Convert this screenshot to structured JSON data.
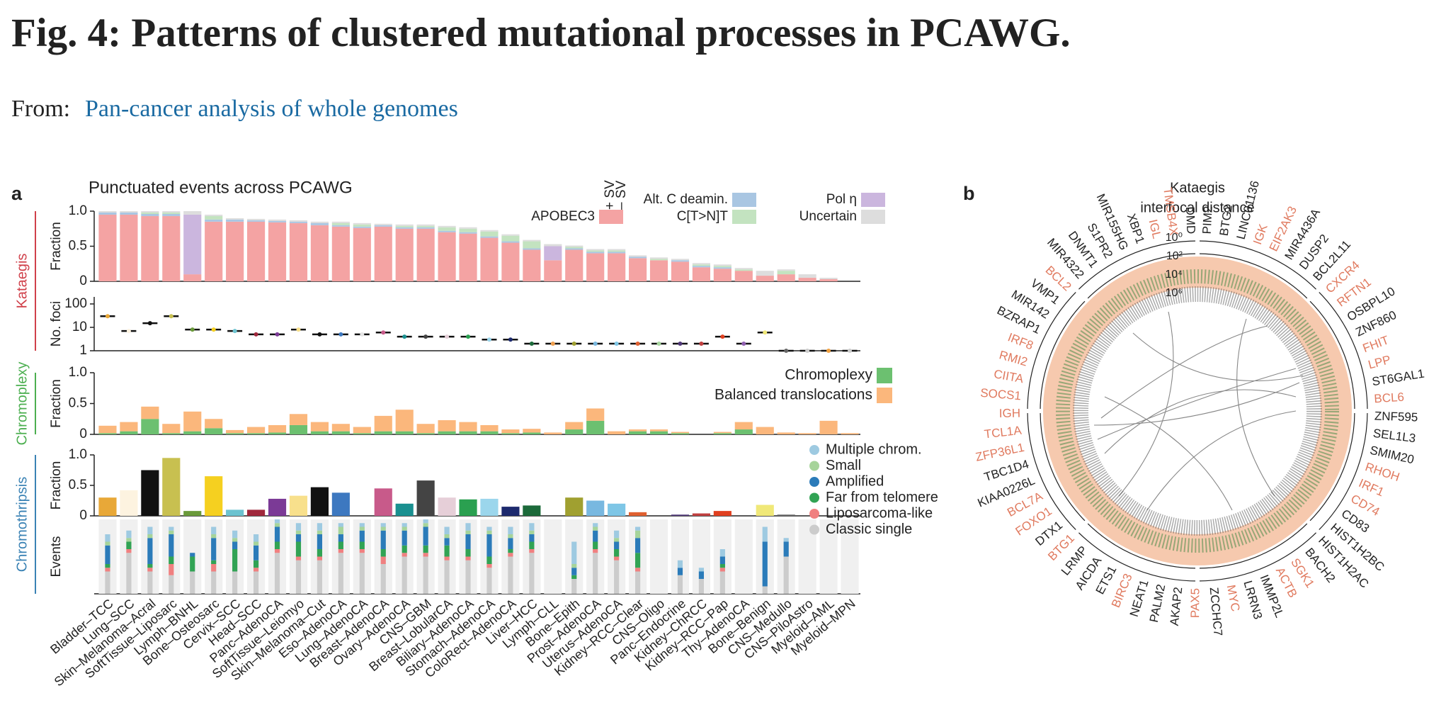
{
  "header": {
    "title": "Fig. 4: Patterns of clustered mutational processes in PCAWG.",
    "from": "From:",
    "source": "Pan-cancer analysis of whole genomes"
  },
  "panel_a": {
    "letter": "a",
    "groups": [
      {
        "label": "Kataegis",
        "color": "#d0404a"
      },
      {
        "label": "Chromoplexy",
        "color": "#4caf50"
      },
      {
        "label": "Chromothripsis",
        "color": "#3a82b4"
      }
    ]
  },
  "chart_data": [
    {
      "type": "stacked-bar",
      "title": "Punctuated events across PCAWG",
      "ylabel": "Fraction",
      "sv_labels": [
        "+ SV",
        "– SV"
      ],
      "ylim": [
        0,
        1
      ],
      "yticks": [
        0,
        0.5,
        {
          "value": 1,
          "label": "1.0"
        }
      ],
      "series": [
        {
          "name": "APOBEC3",
          "color": "#f4a3a3",
          "values": [
            0.95,
            0.95,
            0.93,
            0.93,
            0.1,
            0.85,
            0.85,
            0.85,
            0.84,
            0.83,
            0.8,
            0.78,
            0.76,
            0.78,
            0.75,
            0.75,
            0.7,
            0.68,
            0.62,
            0.55,
            0.45,
            0.3,
            0.45,
            0.4,
            0.4,
            0.33,
            0.3,
            0.28,
            0.2,
            0.18,
            0.15,
            0.08,
            0.1,
            0.05,
            0.03,
            0
          ]
        },
        {
          "name": "Alt. C deamin.",
          "color": "#a9c6e2",
          "values": [
            0.03,
            0.03,
            0.03,
            0.03,
            0,
            0.03,
            0.03,
            0.02,
            0.02,
            0.02,
            0.03,
            0.02,
            0.02,
            0.02,
            0.02,
            0.02,
            0.02,
            0.02,
            0.02,
            0.02,
            0.02,
            0,
            0.02,
            0.02,
            0.02,
            0.02,
            0,
            0.02,
            0.02,
            0.02,
            0,
            0,
            0,
            0,
            0,
            0
          ]
        },
        {
          "name": "Pol η",
          "color": "#cbb6de",
          "values": [
            0,
            0,
            0,
            0,
            0.85,
            0,
            0,
            0,
            0,
            0,
            0,
            0,
            0,
            0,
            0,
            0,
            0,
            0,
            0,
            0,
            0,
            0.2,
            0,
            0,
            0,
            0,
            0,
            0,
            0,
            0,
            0,
            0,
            0,
            0,
            0,
            0
          ]
        },
        {
          "name": "C[T>N]T",
          "color": "#c3e3c0",
          "values": [
            0,
            0,
            0.02,
            0.02,
            0,
            0.05,
            0,
            0,
            0,
            0,
            0,
            0.03,
            0.03,
            0,
            0.02,
            0.02,
            0.05,
            0.05,
            0.07,
            0.08,
            0.1,
            0,
            0.02,
            0.02,
            0.02,
            0,
            0.02,
            0,
            0.02,
            0.02,
            0.02,
            0,
            0.05,
            0,
            0,
            0
          ]
        },
        {
          "name": "Uncertain",
          "color": "#dddddd",
          "values": [
            0.02,
            0.02,
            0.02,
            0.02,
            0.05,
            0.02,
            0.02,
            0.02,
            0.02,
            0.02,
            0.02,
            0.02,
            0.02,
            0.02,
            0.02,
            0.02,
            0.02,
            0.02,
            0.02,
            0.02,
            0.02,
            0.03,
            0.02,
            0.02,
            0.02,
            0.02,
            0.02,
            0.02,
            0.02,
            0.02,
            0.02,
            0.07,
            0.02,
            0.05,
            0.02,
            0
          ]
        }
      ]
    },
    {
      "type": "strip",
      "ylabel": "No. foci",
      "log": true,
      "ylim": [
        1,
        200
      ],
      "yticks": [
        1,
        10,
        100
      ],
      "values": [
        30,
        7,
        15,
        30,
        8,
        8,
        7,
        5,
        5,
        8,
        5,
        5,
        5,
        6,
        4,
        4,
        4,
        4,
        3,
        3,
        2,
        2,
        2,
        2,
        2,
        2,
        2,
        2,
        2,
        4,
        2,
        6,
        1,
        1,
        1,
        1
      ]
    },
    {
      "type": "stacked-bar",
      "ylabel": "Fraction",
      "ylim": [
        0,
        1
      ],
      "yticks": [
        0,
        0.5,
        {
          "value": 1,
          "label": "1.0"
        }
      ],
      "series": [
        {
          "name": "Chromoplexy",
          "color": "#6cc070",
          "values": [
            0.02,
            0.05,
            0.25,
            0.02,
            0.05,
            0.1,
            0.02,
            0.02,
            0.03,
            0.15,
            0.05,
            0.05,
            0.02,
            0.05,
            0.05,
            0.02,
            0.05,
            0.05,
            0.05,
            0.02,
            0.03,
            0,
            0.08,
            0.22,
            0,
            0.05,
            0.05,
            0.02,
            0,
            0.02,
            0.08,
            0,
            0,
            0,
            0,
            0
          ]
        },
        {
          "name": "Balanced translocations",
          "color": "#fbb77c",
          "values": [
            0.12,
            0.15,
            0.2,
            0.15,
            0.32,
            0.15,
            0.05,
            0.1,
            0.12,
            0.18,
            0.15,
            0.12,
            0.1,
            0.25,
            0.35,
            0.15,
            0.18,
            0.15,
            0.1,
            0.06,
            0.06,
            0.03,
            0.12,
            0.2,
            0.05,
            0.03,
            0.03,
            0.02,
            0,
            0.02,
            0.12,
            0.12,
            0.03,
            0.02,
            0.22,
            0.02
          ]
        }
      ]
    },
    {
      "type": "bar",
      "ylabel": "Fraction",
      "ylim": [
        0,
        1
      ],
      "yticks": [
        0,
        0.5,
        {
          "value": 1,
          "label": "1.0"
        }
      ],
      "values": [
        0.3,
        0.42,
        0.75,
        0.95,
        0.08,
        0.65,
        0.1,
        0.1,
        0.28,
        0.33,
        0.47,
        0.38,
        0,
        0.45,
        0.2,
        0.58,
        0.3,
        0.27,
        0.28,
        0.15,
        0.17,
        0,
        0.3,
        0.25,
        0.2,
        0.06,
        0,
        0.02,
        0.04,
        0.08,
        0,
        0.18,
        0.02,
        0,
        0,
        0
      ],
      "colors": [
        "#e8a838",
        "#fdf3e0",
        "#111111",
        "#c8c050",
        "#6a9a3a",
        "#f5d020",
        "#6cc3d0",
        "#a0283c",
        "#7b3a96",
        "#f8e08c",
        "#111111",
        "#3d78c0",
        "#e5e5e5",
        "#c85a8a",
        "#1a9090",
        "#444444",
        "#e6cfd8",
        "#2aa050",
        "#9bd6ec",
        "#1d2a6e",
        "#1c6a3a",
        "#f0a050",
        "#a0a030",
        "#78b8e0",
        "#7ec6e6",
        "#e06030",
        "#a8d8a0",
        "#503878",
        "#c04040",
        "#e04020",
        "#9060b0",
        "#f0e878",
        "#666666",
        "#cccccc",
        "#f0a040",
        "#cccccc"
      ]
    },
    {
      "type": "stacked-bar",
      "ylabel": "Events",
      "ylim": [
        0,
        1
      ],
      "categories": [
        "Bladder–TCC",
        "Lung–SCC",
        "Skin–Melanoma–Acral",
        "SoftTissue–Liposarc",
        "Lymph–BNHL",
        "Bone–Osteosarc",
        "Cervix–SCC",
        "Head–SCC",
        "Panc–AdenoCA",
        "SoftTissue–Leiomyo",
        "Skin–Melanoma–Cut",
        "Eso–AdenoCA",
        "Lung–AdenoCA",
        "Breast–AdenoCA",
        "Ovary–AdenoCA",
        "CNS–GBM",
        "Breast–LobularCA",
        "Biliary–AdenoCA",
        "Stomach–AdenoCA",
        "ColoRect–AdenoCA",
        "Liver–HCC",
        "Lymph–CLL",
        "Bone–Epith",
        "Prost–AdenoCA",
        "Uterus–AdenoCA",
        "Kidney–RCC–Clear",
        "CNS–Oligo",
        "Panc–Endocrine",
        "Kidney–ChRCC",
        "Kidney–RCC–Pap",
        "Thy–AdenoCA",
        "Bone–Benign",
        "CNS–Medullo",
        "CNS–PiloAstro",
        "Myeloid–AML",
        "Myeloid–MPN"
      ],
      "series": [
        {
          "name": "Multiple chrom.",
          "color": "#9ecae1",
          "values": [
            0.1,
            0.1,
            0.1,
            0.05,
            0,
            0.1,
            0.1,
            0.1,
            0.05,
            0.1,
            0.1,
            0.05,
            0.05,
            0.05,
            0.05,
            0.05,
            0.1,
            0.1,
            0.05,
            0.1,
            0.1,
            0,
            0.3,
            0.05,
            0.1,
            0.05,
            0,
            0.1,
            0.05,
            0.1,
            0,
            0.2,
            0.05,
            0,
            0,
            0
          ]
        },
        {
          "name": "Small",
          "color": "#a6d49a",
          "values": [
            0.05,
            0.05,
            0.05,
            0.05,
            0,
            0.05,
            0.05,
            0.05,
            0.05,
            0.05,
            0.05,
            0.1,
            0.05,
            0.05,
            0.05,
            0.05,
            0.05,
            0.05,
            0.05,
            0.05,
            0.05,
            0,
            0.05,
            0.05,
            0.05,
            0.1,
            0,
            0,
            0,
            0,
            0,
            0,
            0,
            0,
            0,
            0
          ]
        },
        {
          "name": "Amplified",
          "color": "#2b7bb9",
          "values": [
            0.25,
            0,
            0.35,
            0.3,
            0.05,
            0.3,
            0.1,
            0.2,
            0.2,
            0.1,
            0.2,
            0.1,
            0.15,
            0.25,
            0.2,
            0.25,
            0.1,
            0.2,
            0.3,
            0.15,
            0.1,
            0,
            0.1,
            0.15,
            0.1,
            0.2,
            0,
            0.1,
            0.1,
            0.1,
            0,
            0.6,
            0.2,
            0,
            0,
            0
          ]
        },
        {
          "name": "Far from telomere",
          "color": "#31a354",
          "values": [
            0.05,
            0.1,
            0.05,
            0.1,
            0.2,
            0.05,
            0.3,
            0.1,
            0.1,
            0.2,
            0.1,
            0.1,
            0.1,
            0.1,
            0.1,
            0.1,
            0.15,
            0.1,
            0.1,
            0.05,
            0.1,
            0,
            0.05,
            0.1,
            0.1,
            0.2,
            0,
            0,
            0,
            0.05,
            0,
            0,
            0,
            0,
            0,
            0
          ]
        },
        {
          "name": "Liposarcoma-like",
          "color": "#f08080",
          "values": [
            0.05,
            0.05,
            0.05,
            0.15,
            0,
            0.1,
            0,
            0.05,
            0.05,
            0.05,
            0.05,
            0.05,
            0.05,
            0.1,
            0.05,
            0.05,
            0.05,
            0.05,
            0.05,
            0.05,
            0.05,
            0,
            0,
            0.05,
            0.05,
            0.05,
            0,
            0,
            0,
            0.05,
            0,
            0,
            0,
            0,
            0,
            0
          ]
        },
        {
          "name": "Classic single",
          "color": "#cccccc",
          "values": [
            0.3,
            0.55,
            0.3,
            0.25,
            0.3,
            0.3,
            0.3,
            0.3,
            0.55,
            0.45,
            0.45,
            0.55,
            0.55,
            0.4,
            0.5,
            0.5,
            0.45,
            0.45,
            0.35,
            0.5,
            0.55,
            0,
            0.2,
            0.55,
            0.45,
            0.3,
            0,
            0.25,
            0.2,
            0.3,
            0,
            0.1,
            0.5,
            0,
            0,
            0
          ]
        }
      ]
    }
  ],
  "panel_b": {
    "letter": "b",
    "title": [
      "Kataegis",
      "interfocal distance"
    ],
    "scale": [
      "10⁰",
      "10²",
      "10⁴",
      "10⁶"
    ],
    "genes": [
      {
        "label": "BTG2",
        "color": "#222"
      },
      {
        "label": "LINC01136",
        "color": "#222"
      },
      {
        "label": "IGK",
        "color": "#e07a5f"
      },
      {
        "label": "EIF2AK3",
        "color": "#e07a5f"
      },
      {
        "label": "MIR4436A",
        "color": "#222"
      },
      {
        "label": "DUSP2",
        "color": "#222"
      },
      {
        "label": "BCL2L11",
        "color": "#222"
      },
      {
        "label": "CXCR4",
        "color": "#e07a5f"
      },
      {
        "label": "RFTN1",
        "color": "#e07a5f"
      },
      {
        "label": "OSBPL10",
        "color": "#222"
      },
      {
        "label": "ZNF860",
        "color": "#222"
      },
      {
        "label": "FHIT",
        "color": "#e07a5f"
      },
      {
        "label": "LPP",
        "color": "#e07a5f"
      },
      {
        "label": "ST6GAL1",
        "color": "#222"
      },
      {
        "label": "BCL6",
        "color": "#e07a5f"
      },
      {
        "label": "ZNF595",
        "color": "#222"
      },
      {
        "label": "SEL1L3",
        "color": "#222"
      },
      {
        "label": "SMIM20",
        "color": "#222"
      },
      {
        "label": "RHOH",
        "color": "#e07a5f"
      },
      {
        "label": "IRF1",
        "color": "#e07a5f"
      },
      {
        "label": "CD74",
        "color": "#e07a5f"
      },
      {
        "label": "CD83",
        "color": "#222"
      },
      {
        "label": "HIST1H2BC",
        "color": "#222"
      },
      {
        "label": "HIST1H2AC",
        "color": "#222"
      },
      {
        "label": "BACH2",
        "color": "#222"
      },
      {
        "label": "SGK1",
        "color": "#e07a5f"
      },
      {
        "label": "ACTB",
        "color": "#e07a5f"
      },
      {
        "label": "IMMP2L",
        "color": "#222"
      },
      {
        "label": "LRRN3",
        "color": "#222"
      },
      {
        "label": "MYC",
        "color": "#e07a5f"
      },
      {
        "label": "ZCCHC7",
        "color": "#222"
      },
      {
        "label": "PAX5",
        "color": "#e07a5f"
      },
      {
        "label": "AKAP2",
        "color": "#222"
      },
      {
        "label": "PALM2",
        "color": "#222"
      },
      {
        "label": "NEAT1",
        "color": "#222"
      },
      {
        "label": "BIRC3",
        "color": "#e07a5f"
      },
      {
        "label": "ETS1",
        "color": "#222"
      },
      {
        "label": "AICDA",
        "color": "#222"
      },
      {
        "label": "LRMP",
        "color": "#222"
      },
      {
        "label": "BTG1",
        "color": "#e07a5f"
      },
      {
        "label": "DTX1",
        "color": "#222"
      },
      {
        "label": "FOXO1",
        "color": "#e07a5f"
      },
      {
        "label": "BCL7A",
        "color": "#e07a5f"
      },
      {
        "label": "KIAA0226L",
        "color": "#222"
      },
      {
        "label": "TBC1D4",
        "color": "#222"
      },
      {
        "label": "ZFP36L1",
        "color": "#e07a5f"
      },
      {
        "label": "TCL1A",
        "color": "#e07a5f"
      },
      {
        "label": "IGH",
        "color": "#e07a5f"
      },
      {
        "label": "SOCS1",
        "color": "#e07a5f"
      },
      {
        "label": "CIITA",
        "color": "#e07a5f"
      },
      {
        "label": "RMI2",
        "color": "#e07a5f"
      },
      {
        "label": "IRF8",
        "color": "#e07a5f"
      },
      {
        "label": "BZRAP1",
        "color": "#222"
      },
      {
        "label": "MIR142",
        "color": "#222"
      },
      {
        "label": "VMP1",
        "color": "#222"
      },
      {
        "label": "BCL2",
        "color": "#e07a5f"
      },
      {
        "label": "MIR4322",
        "color": "#222"
      },
      {
        "label": "DNMT1",
        "color": "#222"
      },
      {
        "label": "S1PR2",
        "color": "#222"
      },
      {
        "label": "MIR155HG",
        "color": "#222"
      },
      {
        "label": "XBP1",
        "color": "#222"
      },
      {
        "label": "IGL",
        "color": "#e07a5f"
      },
      {
        "label": "TMSB4X",
        "color": "#e07a5f"
      },
      {
        "label": "DMD",
        "color": "#222"
      },
      {
        "label": "PIM2",
        "color": "#222"
      }
    ]
  }
}
